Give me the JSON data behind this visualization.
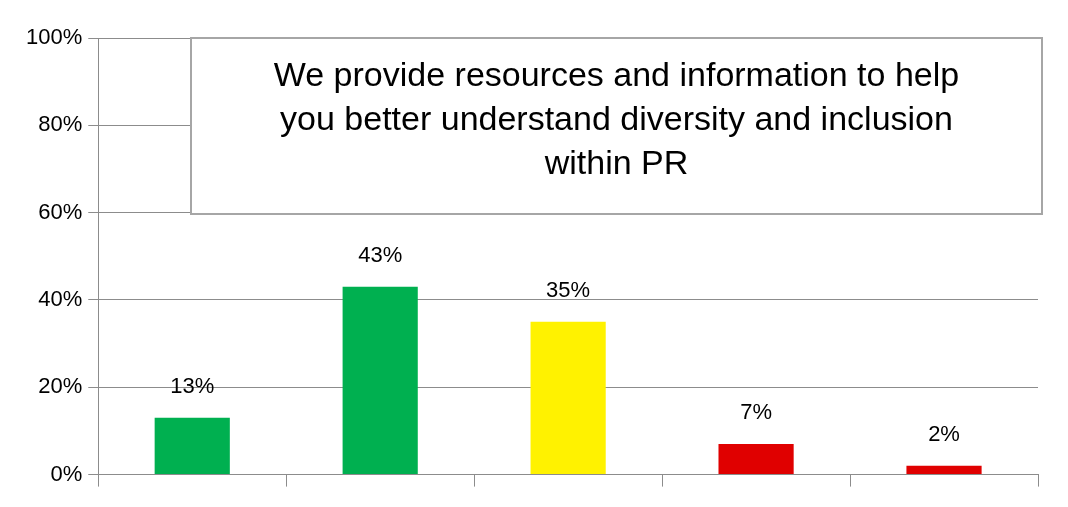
{
  "chart_data": {
    "type": "bar",
    "title": "We provide resources and information to help you better understand diversity and inclusion within PR",
    "categories": [
      null,
      null,
      null,
      null,
      null
    ],
    "values": [
      13,
      43,
      35,
      7,
      2
    ],
    "colors": [
      "#00b050",
      "#00b050",
      "#fff200",
      "#e00000",
      "#e00000"
    ],
    "value_labels": [
      "13%",
      "43%",
      "35%",
      "7%",
      "2%"
    ],
    "ylim": [
      0,
      100
    ],
    "yticks": [
      {
        "value": 0,
        "label": "0%"
      },
      {
        "value": 20,
        "label": "20%"
      },
      {
        "value": 40,
        "label": "40%"
      },
      {
        "value": 60,
        "label": "60%"
      },
      {
        "value": 80,
        "label": "80%"
      },
      {
        "value": 100,
        "label": "100%"
      }
    ],
    "grid": "y",
    "legend": false
  }
}
